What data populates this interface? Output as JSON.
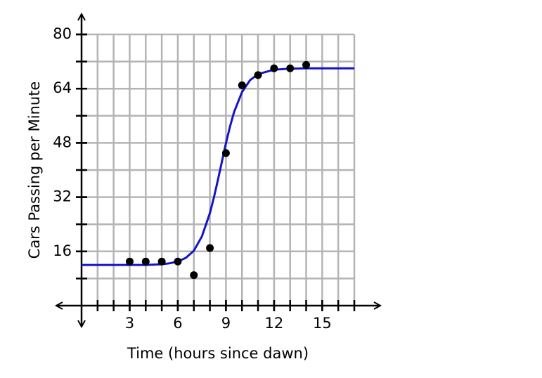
{
  "chart_data": {
    "type": "scatter",
    "xlabel": "Time (hours since dawn)",
    "ylabel": "Cars Passing per Minute",
    "xlim": [
      0,
      17
    ],
    "ylim": [
      0,
      80
    ],
    "xticks": [
      3,
      6,
      9,
      12,
      15
    ],
    "yticks": [
      16,
      32,
      48,
      64,
      80
    ],
    "xgrid_step": 1,
    "ygrid_step": 8,
    "grid": true,
    "series": [
      {
        "type": "line",
        "color": "#1414c8",
        "x": [
          0,
          1,
          2,
          3,
          4,
          5,
          5.5,
          6,
          6.5,
          7,
          7.5,
          8,
          8.25,
          8.5,
          8.75,
          9,
          9.25,
          9.5,
          10,
          10.5,
          11,
          12,
          13,
          14,
          15,
          16,
          17
        ],
        "values": [
          12,
          12,
          12,
          12,
          12,
          12.2,
          12.5,
          13,
          14.1,
          16.2,
          20.4,
          27.3,
          31.9,
          37.1,
          42.5,
          47.9,
          52.8,
          57,
          63,
          66.5,
          68.3,
          69.6,
          69.9,
          70,
          70,
          70,
          70
        ]
      },
      {
        "type": "scatter",
        "color": "#000000",
        "x": [
          3,
          4,
          5,
          6,
          7,
          8,
          9,
          10,
          11,
          12,
          13,
          14
        ],
        "values": [
          13,
          13,
          13,
          13,
          9,
          17,
          45,
          65,
          68,
          70,
          70,
          71
        ]
      }
    ]
  }
}
